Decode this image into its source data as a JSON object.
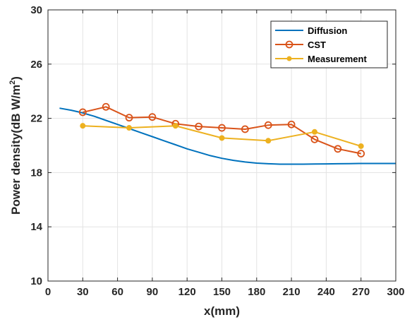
{
  "chart_data": {
    "type": "line",
    "xlabel": "x(mm)",
    "ylabel_main": "Power density(dB W/m",
    "ylabel_sup": "2",
    "ylabel_tail": ")",
    "xlim": [
      0,
      300
    ],
    "ylim": [
      10,
      30
    ],
    "xticks": [
      0,
      30,
      60,
      90,
      120,
      150,
      180,
      210,
      240,
      270,
      300
    ],
    "yticks": [
      10,
      14,
      18,
      22,
      26,
      30
    ],
    "grid": true,
    "legend_position": "top-right",
    "series": [
      {
        "name": "Diffusion",
        "color": "#0072BD",
        "marker": "none",
        "x": [
          10,
          20,
          30,
          40,
          50,
          60,
          70,
          80,
          90,
          100,
          110,
          120,
          130,
          140,
          150,
          160,
          170,
          180,
          190,
          200,
          210,
          220,
          230,
          240,
          250,
          260,
          270,
          280,
          290,
          300
        ],
        "y": [
          22.75,
          22.6,
          22.4,
          22.15,
          21.85,
          21.55,
          21.25,
          20.95,
          20.65,
          20.35,
          20.05,
          19.75,
          19.5,
          19.25,
          19.05,
          18.9,
          18.78,
          18.7,
          18.65,
          18.62,
          18.62,
          18.62,
          18.63,
          18.64,
          18.65,
          18.66,
          18.67,
          18.67,
          18.67,
          18.67
        ]
      },
      {
        "name": "CST",
        "color": "#D95319",
        "marker": "circle",
        "x": [
          30,
          50,
          70,
          90,
          110,
          130,
          150,
          170,
          190,
          210,
          230,
          250,
          270
        ],
        "y": [
          22.45,
          22.85,
          22.05,
          22.1,
          21.6,
          21.4,
          21.3,
          21.2,
          21.5,
          21.55,
          20.45,
          19.75,
          19.4
        ]
      },
      {
        "name": "Measurement",
        "color": "#EDB120",
        "marker": "dot",
        "x": [
          30,
          70,
          110,
          150,
          190,
          230,
          270
        ],
        "y": [
          21.45,
          21.3,
          21.45,
          20.55,
          20.35,
          21.0,
          19.95
        ]
      }
    ]
  }
}
